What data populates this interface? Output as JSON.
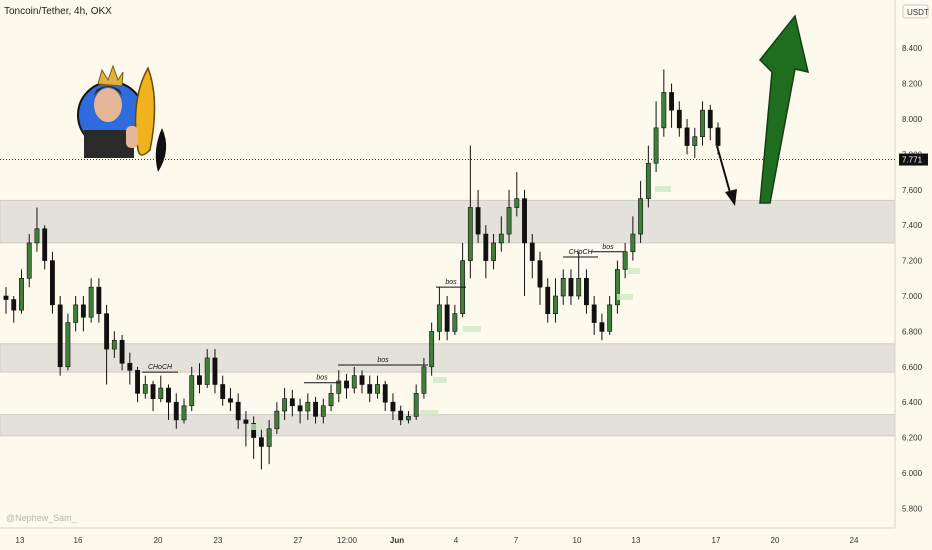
{
  "header": {
    "title": "Toncoin/Tether, 4h, OKX",
    "currency": "USDT"
  },
  "watermark": "@Nephew_Sam_",
  "chart_data": {
    "type": "candlestick",
    "title": "Toncoin/Tether, 4h, OKX",
    "ylim": [
      5.6,
      8.6
    ],
    "y_ticks": [
      "5.800",
      "6.000",
      "6.200",
      "6.400",
      "6.600",
      "6.800",
      "7.000",
      "7.200",
      "7.400",
      "7.600",
      "7.800",
      "8.000",
      "8.200",
      "8.400"
    ],
    "y_tick_values": [
      5.8,
      6.0,
      6.2,
      6.4,
      6.6,
      6.8,
      7.0,
      7.2,
      7.4,
      7.6,
      7.8,
      8.0,
      8.2,
      8.4
    ],
    "x_ticks": [
      "13",
      "16",
      "20",
      "23",
      "27",
      "12:00",
      "Jun",
      "4",
      "7",
      "10",
      "13",
      "17",
      "20",
      "24"
    ],
    "current_price": "7.771",
    "current_price_value": 7.771,
    "zones": [
      {
        "name": "upper-zone",
        "low": 7.3,
        "high": 7.54
      },
      {
        "name": "middle-zone",
        "low": 6.57,
        "high": 6.73
      },
      {
        "name": "lower-zone",
        "low": 6.21,
        "high": 6.33
      }
    ],
    "structure_labels": [
      {
        "text": "CHoCH",
        "level": 6.57
      },
      {
        "text": "bos",
        "level": 6.51
      },
      {
        "text": "bos",
        "level": 6.61
      },
      {
        "text": "bos",
        "level": 7.05
      },
      {
        "text": "CHoCH",
        "level": 7.22
      },
      {
        "text": "bos",
        "level": 7.25
      }
    ],
    "candles": [
      [
        7.0,
        6.98,
        7.05,
        6.9
      ],
      [
        6.98,
        6.92,
        7.0,
        6.85
      ],
      [
        6.92,
        7.1,
        7.15,
        6.9
      ],
      [
        7.1,
        7.3,
        7.35,
        7.05
      ],
      [
        7.3,
        7.38,
        7.5,
        7.25
      ],
      [
        7.38,
        7.2,
        7.4,
        7.15
      ],
      [
        7.2,
        6.95,
        7.25,
        6.9
      ],
      [
        6.95,
        6.6,
        7.0,
        6.55
      ],
      [
        6.6,
        6.85,
        6.9,
        6.58
      ],
      [
        6.85,
        6.95,
        7.0,
        6.8
      ],
      [
        6.95,
        6.88,
        7.0,
        6.8
      ],
      [
        6.88,
        7.05,
        7.1,
        6.85
      ],
      [
        7.05,
        6.9,
        7.1,
        6.85
      ],
      [
        6.9,
        6.7,
        6.95,
        6.5
      ],
      [
        6.7,
        6.75,
        6.8,
        6.65
      ],
      [
        6.75,
        6.62,
        6.78,
        6.58
      ],
      [
        6.62,
        6.58,
        6.68,
        6.5
      ],
      [
        6.58,
        6.45,
        6.6,
        6.4
      ],
      [
        6.45,
        6.5,
        6.55,
        6.42
      ],
      [
        6.5,
        6.42,
        6.52,
        6.35
      ],
      [
        6.42,
        6.48,
        6.55,
        6.4
      ],
      [
        6.48,
        6.4,
        6.5,
        6.3
      ],
      [
        6.4,
        6.3,
        6.45,
        6.25
      ],
      [
        6.3,
        6.38,
        6.42,
        6.28
      ],
      [
        6.38,
        6.55,
        6.6,
        6.35
      ],
      [
        6.55,
        6.5,
        6.62,
        6.45
      ],
      [
        6.5,
        6.65,
        6.7,
        6.48
      ],
      [
        6.65,
        6.5,
        6.7,
        6.45
      ],
      [
        6.5,
        6.42,
        6.55,
        6.38
      ],
      [
        6.42,
        6.4,
        6.48,
        6.35
      ],
      [
        6.4,
        6.3,
        6.45,
        6.25
      ],
      [
        6.3,
        6.28,
        6.35,
        6.15
      ],
      [
        6.28,
        6.2,
        6.32,
        6.08
      ],
      [
        6.2,
        6.15,
        6.25,
        6.02
      ],
      [
        6.15,
        6.25,
        6.3,
        6.05
      ],
      [
        6.25,
        6.35,
        6.4,
        6.22
      ],
      [
        6.35,
        6.42,
        6.48,
        6.3
      ],
      [
        6.42,
        6.38,
        6.47,
        6.32
      ],
      [
        6.38,
        6.35,
        6.42,
        6.28
      ],
      [
        6.35,
        6.4,
        6.45,
        6.3
      ],
      [
        6.4,
        6.32,
        6.43,
        6.28
      ],
      [
        6.32,
        6.38,
        6.42,
        6.28
      ],
      [
        6.38,
        6.45,
        6.5,
        6.35
      ],
      [
        6.45,
        6.52,
        6.58,
        6.4
      ],
      [
        6.52,
        6.48,
        6.56,
        6.42
      ],
      [
        6.48,
        6.55,
        6.6,
        6.45
      ],
      [
        6.55,
        6.5,
        6.58,
        6.45
      ],
      [
        6.5,
        6.45,
        6.55,
        6.4
      ],
      [
        6.45,
        6.5,
        6.55,
        6.42
      ],
      [
        6.5,
        6.4,
        6.52,
        6.35
      ],
      [
        6.4,
        6.35,
        6.45,
        6.3
      ],
      [
        6.35,
        6.3,
        6.38,
        6.27
      ],
      [
        6.3,
        6.32,
        6.35,
        6.28
      ],
      [
        6.32,
        6.45,
        6.5,
        6.3
      ],
      [
        6.45,
        6.6,
        6.65,
        6.42
      ],
      [
        6.6,
        6.8,
        6.85,
        6.55
      ],
      [
        6.8,
        6.95,
        7.05,
        6.75
      ],
      [
        6.95,
        6.8,
        7.0,
        6.75
      ],
      [
        6.8,
        6.9,
        6.95,
        6.78
      ],
      [
        6.9,
        7.2,
        7.3,
        6.88
      ],
      [
        7.2,
        7.5,
        7.85,
        7.1
      ],
      [
        7.5,
        7.35,
        7.6,
        7.3
      ],
      [
        7.35,
        7.2,
        7.4,
        7.1
      ],
      [
        7.2,
        7.3,
        7.35,
        7.15
      ],
      [
        7.3,
        7.35,
        7.45,
        7.25
      ],
      [
        7.35,
        7.5,
        7.6,
        7.3
      ],
      [
        7.5,
        7.55,
        7.7,
        7.45
      ],
      [
        7.55,
        7.3,
        7.6,
        7.0
      ],
      [
        7.3,
        7.2,
        7.35,
        7.1
      ],
      [
        7.2,
        7.05,
        7.25,
        6.95
      ],
      [
        7.05,
        6.9,
        7.1,
        6.85
      ],
      [
        6.9,
        7.0,
        7.1,
        6.85
      ],
      [
        7.0,
        7.1,
        7.15,
        6.95
      ],
      [
        7.1,
        7.0,
        7.15,
        6.95
      ],
      [
        7.0,
        7.1,
        7.25,
        6.98
      ],
      [
        7.1,
        6.95,
        7.15,
        6.9
      ],
      [
        6.95,
        6.85,
        7.0,
        6.78
      ],
      [
        6.85,
        6.8,
        6.9,
        6.75
      ],
      [
        6.8,
        6.95,
        7.0,
        6.78
      ],
      [
        6.95,
        7.15,
        7.2,
        6.9
      ],
      [
        7.15,
        7.25,
        7.3,
        7.1
      ],
      [
        7.25,
        7.35,
        7.45,
        7.2
      ],
      [
        7.35,
        7.55,
        7.65,
        7.3
      ],
      [
        7.55,
        7.75,
        7.85,
        7.5
      ],
      [
        7.75,
        7.95,
        8.1,
        7.7
      ],
      [
        7.95,
        8.15,
        8.28,
        7.9
      ],
      [
        8.15,
        8.05,
        8.2,
        7.95
      ],
      [
        8.05,
        7.95,
        8.1,
        7.9
      ],
      [
        7.95,
        7.85,
        8.0,
        7.8
      ],
      [
        7.85,
        7.9,
        7.95,
        7.78
      ],
      [
        7.9,
        8.05,
        8.1,
        7.85
      ],
      [
        8.05,
        7.95,
        8.08,
        7.88
      ],
      [
        7.95,
        7.85,
        7.98,
        7.8
      ]
    ]
  }
}
